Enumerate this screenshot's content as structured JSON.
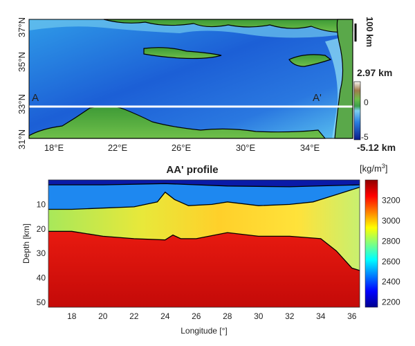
{
  "map": {
    "lat_labels": [
      "37°N",
      "35°N",
      "33°N",
      "31°N"
    ],
    "lon_labels": [
      "18°E",
      "22°E",
      "26°E",
      "30°E",
      "34°E"
    ],
    "section_start": "A",
    "section_end": "A'",
    "scalebar_label": "100 km",
    "colorbar": {
      "max_label": "2.97 km",
      "min_label": "-5.12 km",
      "ticks": [
        "0",
        "-5"
      ]
    }
  },
  "profile": {
    "title": "AA' profile",
    "xlabel": "Longitude [°]",
    "ylabel": "Depth [km]",
    "x_ticks": [
      "18",
      "20",
      "22",
      "24",
      "26",
      "28",
      "30",
      "32",
      "34",
      "36"
    ],
    "y_ticks": [
      "10",
      "20",
      "30",
      "40",
      "50"
    ],
    "colorbar": {
      "unit_prefix": "[kg/m",
      "unit_sup": "3",
      "unit_suffix": "]",
      "ticks": [
        "3200",
        "3000",
        "2800",
        "2600",
        "2400",
        "2200"
      ]
    }
  },
  "chart_data": {
    "type": "heatmap",
    "title": "AA' profile",
    "xlabel": "Longitude [°]",
    "ylabel": "Depth [km]",
    "xlim": [
      16.5,
      36.5
    ],
    "ylim": [
      0,
      52
    ],
    "y_reversed": true,
    "colorbar_range": [
      2150,
      3400
    ],
    "colorbar_ticks": [
      2200,
      2400,
      2600,
      2800,
      3000,
      3200
    ],
    "layers": [
      {
        "density": 2200,
        "boundary_depth": [
          [
            16.5,
            2
          ],
          [
            20,
            2
          ],
          [
            24,
            1.5
          ],
          [
            28,
            2.5
          ],
          [
            32,
            2.8
          ],
          [
            36.5,
            2
          ]
        ]
      },
      {
        "density": 2450,
        "boundary_depth": [
          [
            16.5,
            12
          ],
          [
            18,
            12
          ],
          [
            20,
            11.5
          ],
          [
            22,
            11
          ],
          [
            23.5,
            9
          ],
          [
            24,
            5
          ],
          [
            24.6,
            8
          ],
          [
            25.5,
            10.5
          ],
          [
            27,
            10
          ],
          [
            28,
            9
          ],
          [
            30,
            10.5
          ],
          [
            32,
            10
          ],
          [
            33.5,
            9
          ],
          [
            35,
            6
          ],
          [
            36.5,
            3
          ]
        ]
      },
      {
        "density": 2850,
        "boundary_depth": [
          [
            16.5,
            21
          ],
          [
            18,
            21
          ],
          [
            20,
            23
          ],
          [
            22,
            24
          ],
          [
            24,
            24.5
          ],
          [
            24.5,
            22.5
          ],
          [
            25,
            24
          ],
          [
            26,
            24
          ],
          [
            28,
            21.5
          ],
          [
            30,
            23
          ],
          [
            32,
            23
          ],
          [
            34,
            24
          ],
          [
            35,
            29
          ],
          [
            36,
            36
          ],
          [
            36.5,
            37
          ]
        ]
      },
      {
        "density": 3300,
        "boundary_depth": [
          [
            16.5,
            52
          ],
          [
            36.5,
            52
          ]
        ]
      }
    ]
  }
}
